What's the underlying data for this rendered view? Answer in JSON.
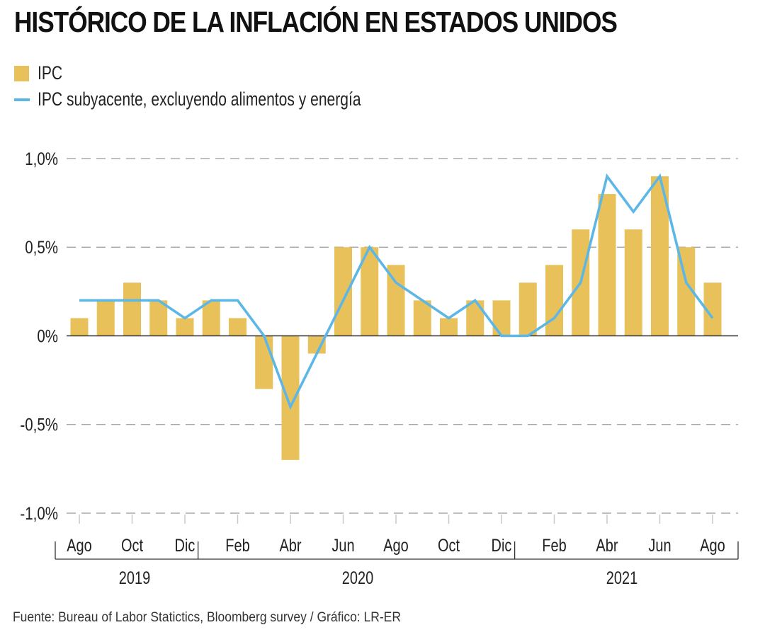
{
  "title": "HISTÓRICO DE LA INFLACIÓN EN ESTADOS UNIDOS",
  "source": "Fuente: Bureau of Labor Statictics, Bloomberg survey / Gráfico: LR-ER",
  "colors": {
    "bar": "#E9C15A",
    "line": "#5DB7E6",
    "grid": "#9a9a9a",
    "axis": "#333333"
  },
  "chart_data": {
    "type": "bar",
    "title": "HISTÓRICO DE LA INFLACIÓN EN ESTADOS UNIDOS",
    "xlabel": "",
    "ylabel": "",
    "ylim": [
      -1.0,
      1.0
    ],
    "grid": true,
    "legend_position": "top-left",
    "yticks": [
      1.0,
      0.5,
      0,
      -0.5,
      -1.0
    ],
    "ytick_labels": [
      "1,0%",
      "0,5%",
      "0%",
      "-0,5%",
      "-1,0%"
    ],
    "categories": [
      "2019-08",
      "2019-09",
      "2019-10",
      "2019-11",
      "2019-12",
      "2020-01",
      "2020-02",
      "2020-03",
      "2020-04",
      "2020-05",
      "2020-06",
      "2020-07",
      "2020-08",
      "2020-09",
      "2020-10",
      "2020-11",
      "2020-12",
      "2021-01",
      "2021-02",
      "2021-03",
      "2021-04",
      "2021-05",
      "2021-06",
      "2021-07",
      "2021-08"
    ],
    "xtick_labels": [
      {
        "index": 0,
        "label": "Ago"
      },
      {
        "index": 2,
        "label": "Oct"
      },
      {
        "index": 4,
        "label": "Dic"
      },
      {
        "index": 6,
        "label": "Feb"
      },
      {
        "index": 8,
        "label": "Abr"
      },
      {
        "index": 10,
        "label": "Jun"
      },
      {
        "index": 12,
        "label": "Ago"
      },
      {
        "index": 14,
        "label": "Oct"
      },
      {
        "index": 16,
        "label": "Dic"
      },
      {
        "index": 18,
        "label": "Feb"
      },
      {
        "index": 20,
        "label": "Abr"
      },
      {
        "index": 22,
        "label": "Jun"
      },
      {
        "index": 24,
        "label": "Ago"
      }
    ],
    "years": [
      {
        "label": "2019",
        "start": 0,
        "end": 4
      },
      {
        "label": "2020",
        "start": 5,
        "end": 16
      },
      {
        "label": "2021",
        "start": 17,
        "end": 24
      }
    ],
    "series": [
      {
        "name": "IPC",
        "type": "bar",
        "values": [
          0.1,
          0.2,
          0.3,
          0.2,
          0.1,
          0.2,
          0.1,
          -0.3,
          -0.7,
          -0.1,
          0.5,
          0.5,
          0.4,
          0.2,
          0.1,
          0.2,
          0.2,
          0.3,
          0.4,
          0.6,
          0.8,
          0.6,
          0.9,
          0.5,
          0.3
        ]
      },
      {
        "name": "IPC subyacente, excluyendo alimentos y energía",
        "type": "line",
        "values": [
          0.2,
          0.2,
          0.2,
          0.2,
          0.1,
          0.2,
          0.2,
          0.0,
          -0.4,
          -0.1,
          0.2,
          0.5,
          0.3,
          0.2,
          0.1,
          0.2,
          0.0,
          0.0,
          0.1,
          0.3,
          0.9,
          0.7,
          0.9,
          0.3,
          0.1
        ]
      }
    ]
  }
}
